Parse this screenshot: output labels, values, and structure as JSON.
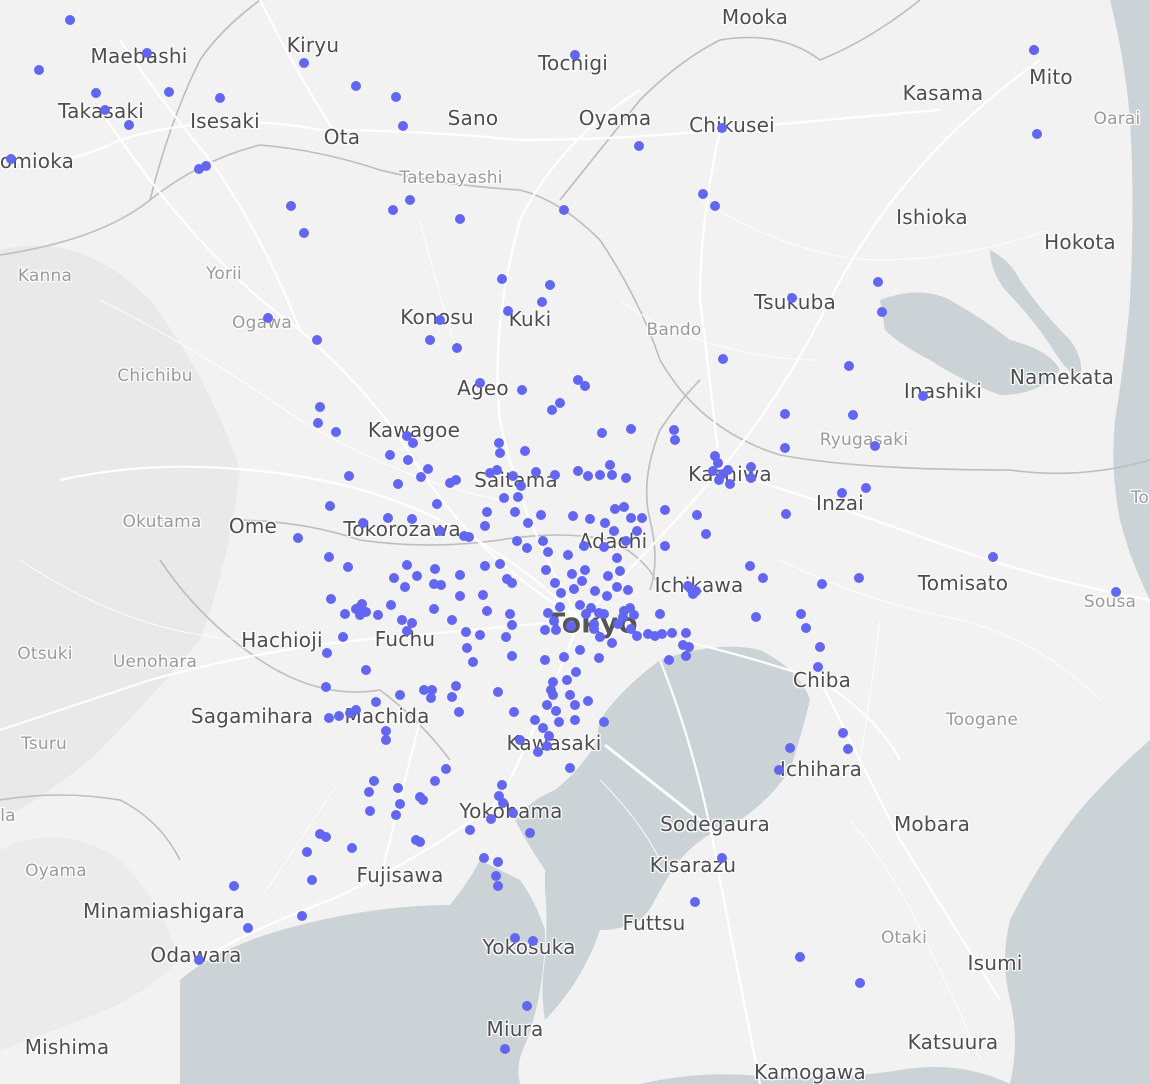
{
  "map": {
    "colors": {
      "land": "#f2f2f2",
      "water": "#cbd3d7",
      "roads": "#ffffff",
      "borders": "#bdbdbd",
      "point": "#6366f1"
    },
    "labels": [
      {
        "id": "mooka",
        "text": "Mooka",
        "cls": "normal"
      },
      {
        "id": "maebashi",
        "text": "Maebashi",
        "cls": "normal"
      },
      {
        "id": "kiryu",
        "text": "Kiryu",
        "cls": "normal"
      },
      {
        "id": "tochigi",
        "text": "Tochigi",
        "cls": "normal"
      },
      {
        "id": "mito",
        "text": "Mito",
        "cls": "normal"
      },
      {
        "id": "takasaki",
        "text": "Takasaki",
        "cls": "normal"
      },
      {
        "id": "isesaki",
        "text": "Isesaki",
        "cls": "normal"
      },
      {
        "id": "sano",
        "text": "Sano",
        "cls": "normal"
      },
      {
        "id": "oyama",
        "text": "Oyama",
        "cls": "normal"
      },
      {
        "id": "chikusei",
        "text": "Chikusei",
        "cls": "normal"
      },
      {
        "id": "kasama",
        "text": "Kasama",
        "cls": "normal"
      },
      {
        "id": "oarai",
        "text": "Oarai",
        "cls": "minor"
      },
      {
        "id": "tomioka",
        "text": "omioka",
        "cls": "normal"
      },
      {
        "id": "ota",
        "text": "Ota",
        "cls": "normal"
      },
      {
        "id": "tatebayashi",
        "text": "Tatebayashi",
        "cls": "minor"
      },
      {
        "id": "ishioka",
        "text": "Ishioka",
        "cls": "normal"
      },
      {
        "id": "hokota",
        "text": "Hokota",
        "cls": "normal"
      },
      {
        "id": "kanna",
        "text": "Kanna",
        "cls": "minor"
      },
      {
        "id": "yorii",
        "text": "Yorii",
        "cls": "minor"
      },
      {
        "id": "tsukuba",
        "text": "Tsukuba",
        "cls": "normal"
      },
      {
        "id": "ogawa",
        "text": "Ogawa",
        "cls": "minor"
      },
      {
        "id": "konosu",
        "text": "Konosu",
        "cls": "normal"
      },
      {
        "id": "kuki",
        "text": "Kuki",
        "cls": "normal"
      },
      {
        "id": "bando",
        "text": "Bando",
        "cls": "minor"
      },
      {
        "id": "chichibu",
        "text": "Chichibu",
        "cls": "minor"
      },
      {
        "id": "ageo",
        "text": "Ageo",
        "cls": "normal"
      },
      {
        "id": "inashiki",
        "text": "Inashiki",
        "cls": "normal"
      },
      {
        "id": "namekata",
        "text": "Namekata",
        "cls": "normal"
      },
      {
        "id": "kawagoe",
        "text": "Kawagoe",
        "cls": "normal"
      },
      {
        "id": "ryugasaki",
        "text": "Ryugasaki",
        "cls": "minor"
      },
      {
        "id": "saitama",
        "text": "Saitama",
        "cls": "normal"
      },
      {
        "id": "kashiwa",
        "text": "Kashiwa",
        "cls": "normal"
      },
      {
        "id": "inzai",
        "text": "Inzai",
        "cls": "normal"
      },
      {
        "id": "okutama",
        "text": "Okutama",
        "cls": "minor"
      },
      {
        "id": "ome",
        "text": "Ome",
        "cls": "normal"
      },
      {
        "id": "tokorozawa",
        "text": "Tokorozawa",
        "cls": "normal"
      },
      {
        "id": "adachi",
        "text": "Adachi",
        "cls": "normal"
      },
      {
        "id": "ichikawa",
        "text": "Ichikawa",
        "cls": "normal"
      },
      {
        "id": "tomisato",
        "text": "Tomisato",
        "cls": "normal"
      },
      {
        "id": "sousa",
        "text": "Sousa",
        "cls": "minor"
      },
      {
        "id": "tokyo",
        "text": "Tokyo",
        "cls": "tokyo"
      },
      {
        "id": "hachioji",
        "text": "Hachioji",
        "cls": "normal"
      },
      {
        "id": "fuchu",
        "text": "Fuchu",
        "cls": "normal"
      },
      {
        "id": "otsuki",
        "text": "Otsuki",
        "cls": "minor"
      },
      {
        "id": "uenohara",
        "text": "Uenohara",
        "cls": "minor"
      },
      {
        "id": "chiba",
        "text": "Chiba",
        "cls": "normal"
      },
      {
        "id": "sagamihara",
        "text": "Sagamihara",
        "cls": "normal"
      },
      {
        "id": "machida",
        "text": "Machida",
        "cls": "normal"
      },
      {
        "id": "toogane",
        "text": "Toogane",
        "cls": "minor"
      },
      {
        "id": "tsuru",
        "text": "Tsuru",
        "cls": "minor"
      },
      {
        "id": "kawasaki",
        "text": "Kawasaki",
        "cls": "normal"
      },
      {
        "id": "ichihara",
        "text": "Ichihara",
        "cls": "normal"
      },
      {
        "id": "yokohama",
        "text": "Yokohama",
        "cls": "normal"
      },
      {
        "id": "sodegaura",
        "text": "Sodegaura",
        "cls": "normal"
      },
      {
        "id": "mobara",
        "text": "Mobara",
        "cls": "normal"
      },
      {
        "id": "kisarazu",
        "text": "Kisarazu",
        "cls": "normal"
      },
      {
        "id": "fujisawa",
        "text": "Fujisawa",
        "cls": "normal"
      },
      {
        "id": "oyama2",
        "text": "Oyama",
        "cls": "minor"
      },
      {
        "id": "minamiashigara",
        "text": "Minamiashigara",
        "cls": "normal"
      },
      {
        "id": "futtsu",
        "text": "Futtsu",
        "cls": "normal"
      },
      {
        "id": "otaki",
        "text": "Otaki",
        "cls": "minor"
      },
      {
        "id": "odawara",
        "text": "Odawara",
        "cls": "normal"
      },
      {
        "id": "yokosuka",
        "text": "Yokosuka",
        "cls": "normal"
      },
      {
        "id": "isumi",
        "text": "Isumi",
        "cls": "normal"
      },
      {
        "id": "miura",
        "text": "Miura",
        "cls": "normal"
      },
      {
        "id": "mishima",
        "text": "Mishima",
        "cls": "normal"
      },
      {
        "id": "katsuura",
        "text": "Katsuura",
        "cls": "normal"
      },
      {
        "id": "kamogawa",
        "text": "Kamogawa",
        "cls": "normal"
      },
      {
        "id": "edge_ta",
        "text": "la",
        "cls": "minor"
      },
      {
        "id": "edge_to",
        "text": "To",
        "cls": "minor"
      }
    ]
  }
}
